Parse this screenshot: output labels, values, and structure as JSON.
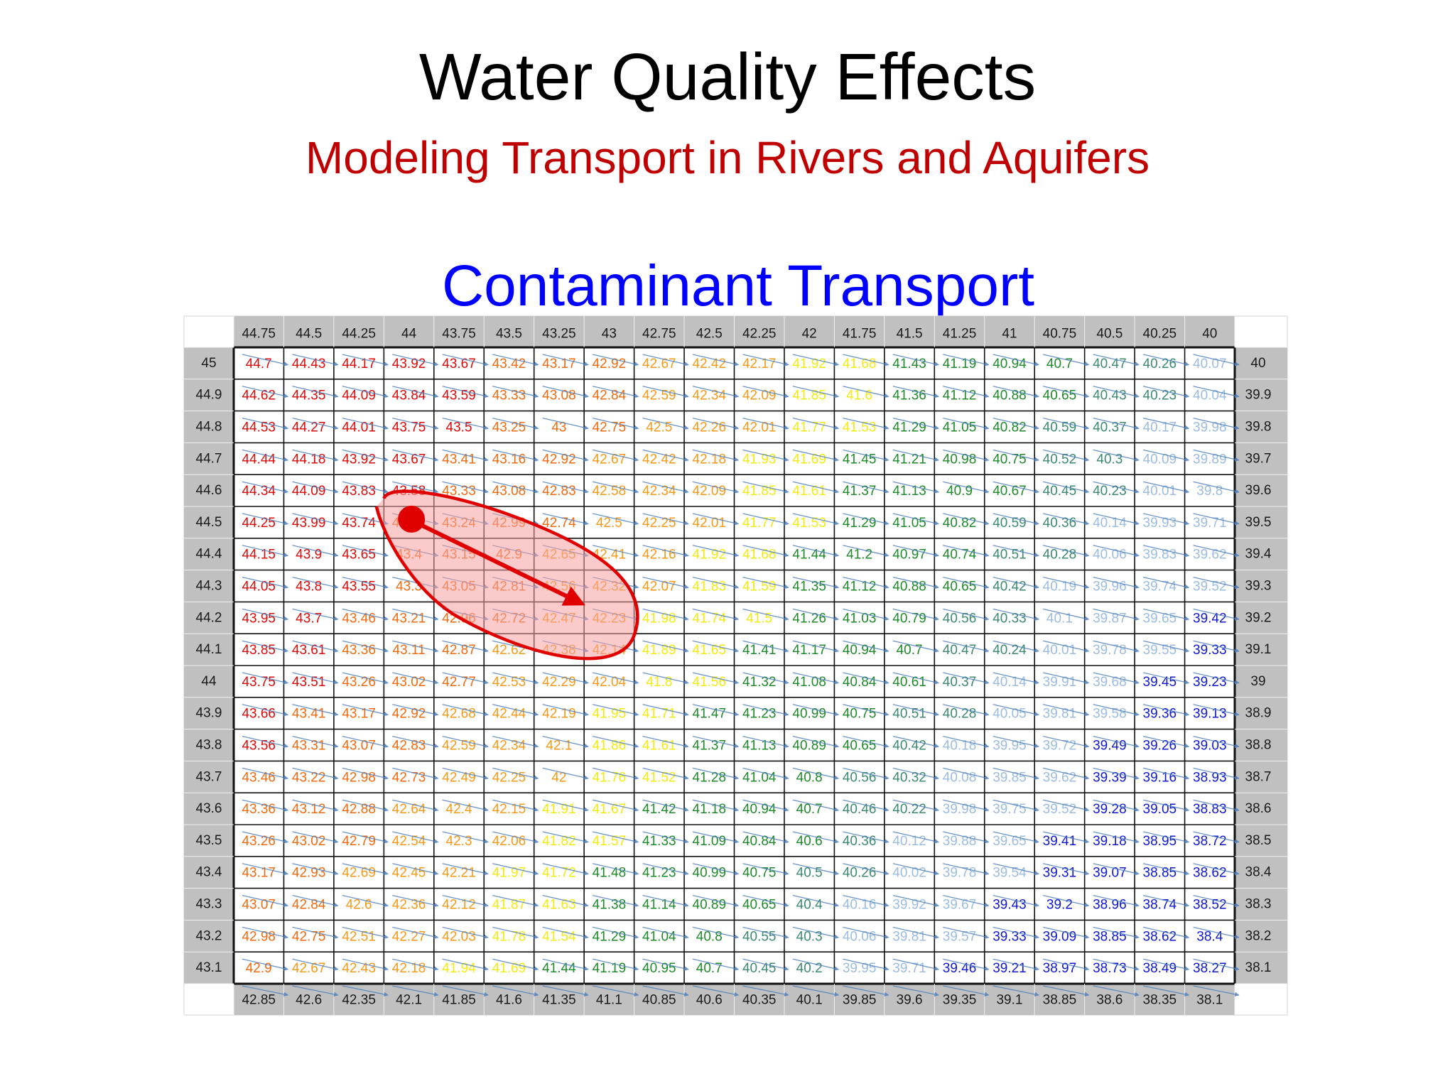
{
  "slide": {
    "title": "Water Quality Effects",
    "subtitle": "Modeling Transport in Rivers and Aquifers",
    "heading": "Contaminant Transport"
  },
  "colors": {
    "title": "#000000",
    "subtitle": "#c00000",
    "heading": "#0000ff",
    "header_band": "#c0c0c0",
    "flow_arrow": "#4f81bd",
    "plume_outline": "#e00000",
    "plume_fill": "#f7a0a0",
    "path_arrow": "#e00000"
  },
  "grid": {
    "top_header": [
      "44.75",
      "44.5",
      "44.25",
      "44",
      "43.75",
      "43.5",
      "43.25",
      "43",
      "42.75",
      "42.5",
      "42.25",
      "42",
      "41.75",
      "41.5",
      "41.25",
      "41",
      "40.75",
      "40.5",
      "40.25",
      "40"
    ],
    "bottom_header": [
      "42.85",
      "42.6",
      "42.35",
      "42.1",
      "41.85",
      "41.6",
      "41.35",
      "41.1",
      "40.85",
      "40.6",
      "40.35",
      "40.1",
      "39.85",
      "39.6",
      "39.35",
      "39.1",
      "38.85",
      "38.6",
      "38.35",
      "38.1"
    ],
    "left_header": [
      "45",
      "44.9",
      "44.8",
      "44.7",
      "44.6",
      "44.5",
      "44.4",
      "44.3",
      "44.2",
      "44.1",
      "44",
      "43.9",
      "43.8",
      "43.7",
      "43.6",
      "43.5",
      "43.4",
      "43.3",
      "43.2",
      "43.1"
    ],
    "right_header": [
      "40",
      "39.9",
      "39.8",
      "39.7",
      "39.6",
      "39.5",
      "39.4",
      "39.3",
      "39.2",
      "39.1",
      "39",
      "38.9",
      "38.8",
      "38.7",
      "38.6",
      "38.5",
      "38.4",
      "38.3",
      "38.2",
      "38.1"
    ],
    "rows": [
      [
        "44.7",
        "44.43",
        "44.17",
        "43.92",
        "43.67",
        "43.42",
        "43.17",
        "42.92",
        "42.67",
        "42.42",
        "42.17",
        "41.92",
        "41.68",
        "41.43",
        "41.19",
        "40.94",
        "40.7",
        "40.47",
        "40.26",
        "40.07"
      ],
      [
        "44.62",
        "44.35",
        "44.09",
        "43.84",
        "43.59",
        "43.33",
        "43.08",
        "42.84",
        "42.59",
        "42.34",
        "42.09",
        "41.85",
        "41.6",
        "41.36",
        "41.12",
        "40.88",
        "40.65",
        "40.43",
        "40.23",
        "40.04"
      ],
      [
        "44.53",
        "44.27",
        "44.01",
        "43.75",
        "43.5",
        "43.25",
        "43",
        "42.75",
        "42.5",
        "42.26",
        "42.01",
        "41.77",
        "41.53",
        "41.29",
        "41.05",
        "40.82",
        "40.59",
        "40.37",
        "40.17",
        "39.98"
      ],
      [
        "44.44",
        "44.18",
        "43.92",
        "43.67",
        "43.41",
        "43.16",
        "42.92",
        "42.67",
        "42.42",
        "42.18",
        "41.93",
        "41.69",
        "41.45",
        "41.21",
        "40.98",
        "40.75",
        "40.52",
        "40.3",
        "40.09",
        "39.89"
      ],
      [
        "44.34",
        "44.09",
        "43.83",
        "43.58",
        "43.33",
        "43.08",
        "42.83",
        "42.58",
        "42.34",
        "42.09",
        "41.85",
        "41.61",
        "41.37",
        "41.13",
        "40.9",
        "40.67",
        "40.45",
        "40.23",
        "40.01",
        "39.8"
      ],
      [
        "44.25",
        "43.99",
        "43.74",
        "43.49",
        "43.24",
        "42.99",
        "42.74",
        "42.5",
        "42.25",
        "42.01",
        "41.77",
        "41.53",
        "41.29",
        "41.05",
        "40.82",
        "40.59",
        "40.36",
        "40.14",
        "39.93",
        "39.71"
      ],
      [
        "44.15",
        "43.9",
        "43.65",
        "43.4",
        "43.15",
        "42.9",
        "42.65",
        "42.41",
        "42.16",
        "41.92",
        "41.68",
        "41.44",
        "41.2",
        "40.97",
        "40.74",
        "40.51",
        "40.28",
        "40.06",
        "39.83",
        "39.62"
      ],
      [
        "44.05",
        "43.8",
        "43.55",
        "43.3",
        "43.05",
        "42.81",
        "42.56",
        "42.32",
        "42.07",
        "41.83",
        "41.59",
        "41.35",
        "41.12",
        "40.88",
        "40.65",
        "40.42",
        "40.19",
        "39.96",
        "39.74",
        "39.52"
      ],
      [
        "43.95",
        "43.7",
        "43.46",
        "43.21",
        "42.96",
        "42.72",
        "42.47",
        "42.23",
        "41.98",
        "41.74",
        "41.5",
        "41.26",
        "41.03",
        "40.79",
        "40.56",
        "40.33",
        "40.1",
        "39.87",
        "39.65",
        "39.42"
      ],
      [
        "43.85",
        "43.61",
        "43.36",
        "43.11",
        "42.87",
        "42.62",
        "42.38",
        "42.14",
        "41.89",
        "41.65",
        "41.41",
        "41.17",
        "40.94",
        "40.7",
        "40.47",
        "40.24",
        "40.01",
        "39.78",
        "39.55",
        "39.33"
      ],
      [
        "43.75",
        "43.51",
        "43.26",
        "43.02",
        "42.77",
        "42.53",
        "42.29",
        "42.04",
        "41.8",
        "41.56",
        "41.32",
        "41.08",
        "40.84",
        "40.61",
        "40.37",
        "40.14",
        "39.91",
        "39.68",
        "39.45",
        "39.23"
      ],
      [
        "43.66",
        "43.41",
        "43.17",
        "42.92",
        "42.68",
        "42.44",
        "42.19",
        "41.95",
        "41.71",
        "41.47",
        "41.23",
        "40.99",
        "40.75",
        "40.51",
        "40.28",
        "40.05",
        "39.81",
        "39.58",
        "39.36",
        "39.13"
      ],
      [
        "43.56",
        "43.31",
        "43.07",
        "42.83",
        "42.59",
        "42.34",
        "42.1",
        "41.86",
        "41.61",
        "41.37",
        "41.13",
        "40.89",
        "40.65",
        "40.42",
        "40.18",
        "39.95",
        "39.72",
        "39.49",
        "39.26",
        "39.03"
      ],
      [
        "43.46",
        "43.22",
        "42.98",
        "42.73",
        "42.49",
        "42.25",
        "42",
        "41.76",
        "41.52",
        "41.28",
        "41.04",
        "40.8",
        "40.56",
        "40.32",
        "40.08",
        "39.85",
        "39.62",
        "39.39",
        "39.16",
        "38.93"
      ],
      [
        "43.36",
        "43.12",
        "42.88",
        "42.64",
        "42.4",
        "42.15",
        "41.91",
        "41.67",
        "41.42",
        "41.18",
        "40.94",
        "40.7",
        "40.46",
        "40.22",
        "39.98",
        "39.75",
        "39.52",
        "39.28",
        "39.05",
        "38.83"
      ],
      [
        "43.26",
        "43.02",
        "42.79",
        "42.54",
        "42.3",
        "42.06",
        "41.82",
        "41.57",
        "41.33",
        "41.09",
        "40.84",
        "40.6",
        "40.36",
        "40.12",
        "39.88",
        "39.65",
        "39.41",
        "39.18",
        "38.95",
        "38.72"
      ],
      [
        "43.17",
        "42.93",
        "42.69",
        "42.45",
        "42.21",
        "41.97",
        "41.72",
        "41.48",
        "41.23",
        "40.99",
        "40.75",
        "40.5",
        "40.26",
        "40.02",
        "39.78",
        "39.54",
        "39.31",
        "39.07",
        "38.85",
        "38.62"
      ],
      [
        "43.07",
        "42.84",
        "42.6",
        "42.36",
        "42.12",
        "41.87",
        "41.63",
        "41.38",
        "41.14",
        "40.89",
        "40.65",
        "40.4",
        "40.16",
        "39.92",
        "39.67",
        "39.43",
        "39.2",
        "38.96",
        "38.74",
        "38.52"
      ],
      [
        "42.98",
        "42.75",
        "42.51",
        "42.27",
        "42.03",
        "41.78",
        "41.54",
        "41.29",
        "41.04",
        "40.8",
        "40.55",
        "40.3",
        "40.06",
        "39.81",
        "39.57",
        "39.33",
        "39.09",
        "38.85",
        "38.62",
        "38.4"
      ],
      [
        "42.9",
        "42.67",
        "42.43",
        "42.18",
        "41.94",
        "41.69",
        "41.44",
        "41.19",
        "40.95",
        "40.7",
        "40.45",
        "40.2",
        "39.95",
        "39.71",
        "39.46",
        "39.21",
        "38.97",
        "38.73",
        "38.49",
        "38.27"
      ]
    ]
  }
}
